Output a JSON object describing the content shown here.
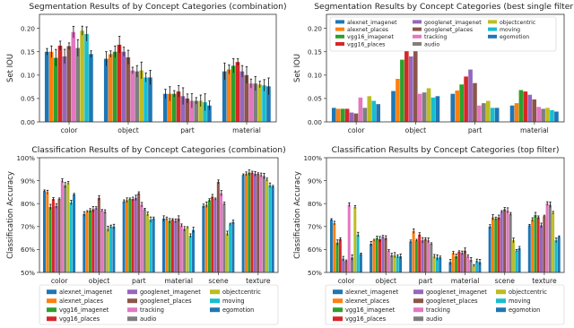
{
  "legend_entries": [
    {
      "name": "alexnet_imagenet",
      "color": "#1f77b4"
    },
    {
      "name": "alexnet_places",
      "color": "#ff7f0e"
    },
    {
      "name": "vgg16_imagenet",
      "color": "#2ca02c"
    },
    {
      "name": "vgg16_places",
      "color": "#d62728"
    },
    {
      "name": "googlenet_imagenet",
      "color": "#9467bd"
    },
    {
      "name": "googlenet_places",
      "color": "#8c564b"
    },
    {
      "name": "tracking",
      "color": "#e377c2"
    },
    {
      "name": "audio",
      "color": "#7f7f7f"
    },
    {
      "name": "objectcentric",
      "color": "#bcbd22"
    },
    {
      "name": "moving",
      "color": "#17becf"
    },
    {
      "name": "egomotion",
      "color": "#1f77b4"
    }
  ],
  "chart_data": [
    {
      "type": "bar",
      "title": "Segmentation Results of by Concept Categories (combination)",
      "ylabel": "Set IOU",
      "xlabel": "",
      "ylim": [
        0,
        0.23
      ],
      "yticks": [
        "0.00",
        "0.05",
        "0.10",
        "0.15",
        "0.20"
      ],
      "ytick_values": [
        0,
        0.05,
        0.1,
        0.15,
        0.2
      ],
      "categories": [
        "color",
        "object",
        "part",
        "material"
      ],
      "error_bars": true,
      "legend": "none",
      "series_values": [
        [
          0.15,
          0.135,
          0.06,
          0.108
        ],
        [
          0.15,
          0.145,
          0.06,
          0.112
        ],
        [
          0.137,
          0.15,
          0.06,
          0.12
        ],
        [
          0.163,
          0.165,
          0.065,
          0.128
        ],
        [
          0.14,
          0.15,
          0.055,
          0.108
        ],
        [
          0.162,
          0.138,
          0.05,
          0.1
        ],
        [
          0.192,
          0.11,
          0.045,
          0.082
        ],
        [
          0.158,
          0.108,
          0.045,
          0.082
        ],
        [
          0.195,
          0.11,
          0.045,
          0.08
        ],
        [
          0.188,
          0.095,
          0.042,
          0.078
        ],
        [
          0.145,
          0.095,
          0.035,
          0.076
        ]
      ]
    },
    {
      "type": "bar",
      "title": "Segmentation Results by Concept Categories (best single filter)",
      "ylabel": "Set IOU",
      "xlabel": "",
      "ylim": [
        0,
        0.23
      ],
      "yticks": [
        "0.00",
        "0.05",
        "0.10",
        "0.15",
        "0.20"
      ],
      "ytick_values": [
        0,
        0.05,
        0.1,
        0.15,
        0.2
      ],
      "categories": [
        "color",
        "object",
        "part",
        "material"
      ],
      "error_bars": false,
      "legend": "top-left",
      "series_values": [
        [
          0.03,
          0.066,
          0.06,
          0.035
        ],
        [
          0.028,
          0.092,
          0.067,
          0.04
        ],
        [
          0.028,
          0.133,
          0.08,
          0.068
        ],
        [
          0.028,
          0.158,
          0.097,
          0.065
        ],
        [
          0.02,
          0.14,
          0.112,
          0.058
        ],
        [
          0.018,
          0.153,
          0.083,
          0.048
        ],
        [
          0.052,
          0.06,
          0.035,
          0.032
        ],
        [
          0.03,
          0.063,
          0.04,
          0.028
        ],
        [
          0.055,
          0.072,
          0.045,
          0.03
        ],
        [
          0.045,
          0.052,
          0.03,
          0.025
        ],
        [
          0.038,
          0.055,
          0.03,
          0.022
        ]
      ]
    },
    {
      "type": "bar",
      "title": "Classification Results of by Concept Categories (combination)",
      "ylabel": "Classification Accuracy",
      "xlabel": "",
      "ylim": [
        0.5,
        1.0
      ],
      "yticks": [
        "50%",
        "60%",
        "70%",
        "80%",
        "90%",
        "100%"
      ],
      "ytick_values": [
        0.5,
        0.6,
        0.7,
        0.8,
        0.9,
        1.0
      ],
      "categories": [
        "color",
        "object",
        "part",
        "material",
        "scene",
        "texture"
      ],
      "error_bars": true,
      "legend": "below",
      "series_values": [
        [
          0.855,
          0.755,
          0.81,
          0.735,
          0.79,
          0.925
        ],
        [
          0.85,
          0.765,
          0.815,
          0.735,
          0.795,
          0.93
        ],
        [
          0.785,
          0.77,
          0.82,
          0.725,
          0.815,
          0.935
        ],
        [
          0.82,
          0.775,
          0.82,
          0.73,
          0.83,
          0.935
        ],
        [
          0.79,
          0.78,
          0.825,
          0.725,
          0.82,
          0.93
        ],
        [
          0.82,
          0.825,
          0.845,
          0.735,
          0.895,
          0.93
        ],
        [
          0.9,
          0.77,
          0.795,
          0.705,
          0.845,
          0.925
        ],
        [
          0.88,
          0.765,
          0.775,
          0.69,
          0.8,
          0.92
        ],
        [
          0.89,
          0.69,
          0.755,
          0.695,
          0.67,
          0.905
        ],
        [
          0.805,
          0.7,
          0.73,
          0.66,
          0.71,
          0.88
        ],
        [
          0.84,
          0.7,
          0.735,
          0.685,
          0.72,
          0.875
        ]
      ]
    },
    {
      "type": "bar",
      "title": "Classification Results by Concept Categories (top filter)",
      "ylabel": "Classification Accuracy",
      "xlabel": "",
      "ylim": [
        0.5,
        1.0
      ],
      "yticks": [
        "50%",
        "60%",
        "70%",
        "80%",
        "90%",
        "100%"
      ],
      "ytick_values": [
        0.5,
        0.6,
        0.7,
        0.8,
        0.9,
        1.0
      ],
      "categories": [
        "color",
        "object",
        "part",
        "material",
        "scene",
        "texture"
      ],
      "error_bars": true,
      "legend": "below",
      "series_values": [
        [
          0.73,
          0.625,
          0.635,
          0.545,
          0.7,
          0.705
        ],
        [
          0.715,
          0.64,
          0.68,
          0.585,
          0.74,
          0.73
        ],
        [
          0.63,
          0.65,
          0.64,
          0.57,
          0.735,
          0.75
        ],
        [
          0.645,
          0.645,
          0.665,
          0.59,
          0.74,
          0.74
        ],
        [
          0.56,
          0.655,
          0.64,
          0.585,
          0.765,
          0.705
        ],
        [
          0.55,
          0.65,
          0.645,
          0.595,
          0.775,
          0.745
        ],
        [
          0.795,
          0.595,
          0.64,
          0.57,
          0.77,
          0.8
        ],
        [
          0.565,
          0.575,
          0.625,
          0.555,
          0.755,
          0.795
        ],
        [
          0.785,
          0.575,
          0.57,
          0.53,
          0.64,
          0.76
        ],
        [
          0.665,
          0.57,
          0.565,
          0.55,
          0.595,
          0.64
        ],
        [
          0.58,
          0.57,
          0.565,
          0.545,
          0.605,
          0.655
        ]
      ]
    }
  ]
}
